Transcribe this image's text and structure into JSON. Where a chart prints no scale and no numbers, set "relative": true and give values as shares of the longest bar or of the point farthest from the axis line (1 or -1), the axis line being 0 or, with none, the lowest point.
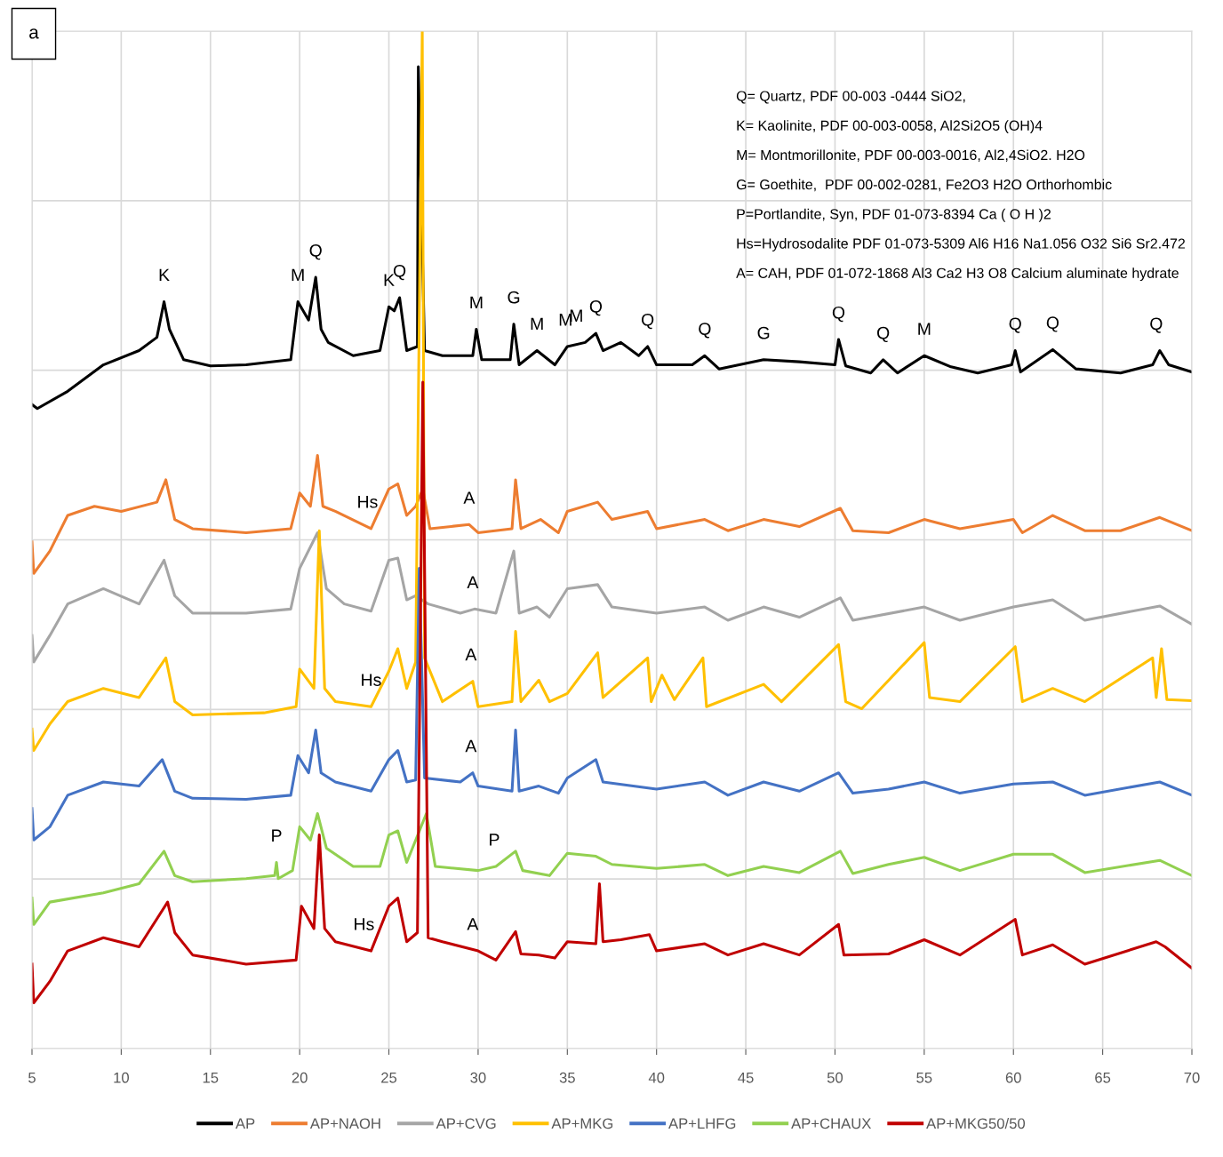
{
  "chart_data": {
    "type": "line",
    "title": "a",
    "relative": true,
    "xlim": [
      5,
      70
    ],
    "xticks": [
      5,
      10,
      15,
      20,
      25,
      30,
      35,
      40,
      45,
      50,
      55,
      60,
      65,
      70
    ],
    "grid": true,
    "legend": "bottom",
    "series": [
      {
        "name": "AP",
        "color": "#000000",
        "x": [
          5,
          5.3,
          7,
          9,
          11,
          12,
          12.4,
          12.7,
          13.5,
          15,
          17,
          19.5,
          19.9,
          20.5,
          20.9,
          21.2,
          21.6,
          23,
          24.5,
          25,
          25.3,
          25.6,
          26,
          26.6,
          26.65,
          27,
          28,
          29.7,
          29.9,
          30.2,
          31.8,
          32,
          32.3,
          33.3,
          34.3,
          35,
          36,
          36.6,
          37,
          38,
          39,
          39.5,
          40,
          42,
          42.7,
          43.5,
          46,
          48,
          50,
          50.2,
          50.6,
          52,
          52.7,
          53.5,
          55,
          56.5,
          58,
          59.9,
          60.1,
          60.4,
          62.2,
          63.5,
          66,
          67.8,
          68.2,
          68.7,
          70
        ],
        "values": [
          0.633,
          0.629,
          0.646,
          0.672,
          0.686,
          0.699,
          0.734,
          0.707,
          0.677,
          0.671,
          0.672,
          0.677,
          0.734,
          0.716,
          0.758,
          0.707,
          0.694,
          0.681,
          0.686,
          0.729,
          0.725,
          0.738,
          0.686,
          0.69,
          0.965,
          0.686,
          0.681,
          0.681,
          0.707,
          0.677,
          0.677,
          0.712,
          0.672,
          0.686,
          0.672,
          0.69,
          0.694,
          0.703,
          0.686,
          0.694,
          0.681,
          0.69,
          0.672,
          0.672,
          0.681,
          0.668,
          0.677,
          0.675,
          0.672,
          0.697,
          0.671,
          0.664,
          0.677,
          0.664,
          0.681,
          0.67,
          0.664,
          0.672,
          0.686,
          0.665,
          0.687,
          0.668,
          0.664,
          0.672,
          0.686,
          0.672,
          0.665
        ]
      },
      {
        "name": "AP+NAOH",
        "color": "#ed7d31",
        "x": [
          5,
          5.1,
          6,
          7,
          8.5,
          10,
          12,
          12.5,
          13,
          14,
          17,
          19.5,
          20,
          20.6,
          21,
          21.3,
          22,
          24,
          25,
          25.5,
          26,
          26.5,
          26.9,
          27.3,
          29.5,
          30,
          31.9,
          32.1,
          32.4,
          33.5,
          34.5,
          35,
          36.7,
          37.5,
          39.5,
          40,
          42.7,
          44,
          46,
          48,
          50.3,
          51,
          53,
          55,
          57,
          60,
          60.5,
          62.2,
          64,
          66,
          68.2,
          70
        ],
        "values": [
          0.498,
          0.467,
          0.489,
          0.524,
          0.533,
          0.528,
          0.537,
          0.559,
          0.52,
          0.511,
          0.507,
          0.511,
          0.546,
          0.533,
          0.583,
          0.533,
          0.528,
          0.511,
          0.55,
          0.555,
          0.524,
          0.533,
          0.55,
          0.511,
          0.515,
          0.507,
          0.511,
          0.559,
          0.511,
          0.52,
          0.507,
          0.528,
          0.537,
          0.52,
          0.528,
          0.511,
          0.52,
          0.509,
          0.52,
          0.513,
          0.531,
          0.509,
          0.507,
          0.52,
          0.511,
          0.52,
          0.507,
          0.524,
          0.509,
          0.509,
          0.522,
          0.509
        ]
      },
      {
        "name": "AP+CVG",
        "color": "#a5a5a5",
        "x": [
          5,
          5.1,
          6,
          7,
          9,
          11,
          12.4,
          13,
          14,
          17,
          19.5,
          20,
          21,
          21.5,
          22.5,
          24,
          25,
          25.5,
          26,
          26.5,
          27.2,
          29,
          29.8,
          31,
          32,
          32.3,
          33.3,
          34,
          35,
          36.7,
          37.5,
          40,
          42.7,
          44,
          46,
          48,
          50.3,
          51,
          55,
          57,
          60,
          62.2,
          64,
          68.2,
          70
        ],
        "values": [
          0.406,
          0.38,
          0.406,
          0.437,
          0.452,
          0.437,
          0.48,
          0.445,
          0.428,
          0.428,
          0.432,
          0.472,
          0.507,
          0.452,
          0.437,
          0.43,
          0.48,
          0.482,
          0.441,
          0.445,
          0.437,
          0.428,
          0.432,
          0.428,
          0.489,
          0.428,
          0.434,
          0.424,
          0.452,
          0.456,
          0.434,
          0.428,
          0.434,
          0.421,
          0.434,
          0.424,
          0.443,
          0.421,
          0.434,
          0.421,
          0.434,
          0.441,
          0.421,
          0.435,
          0.417
        ]
      },
      {
        "name": "AP+MKG",
        "color": "#ffc000",
        "x": [
          5,
          5.1,
          6,
          7,
          9,
          11,
          12.5,
          13,
          14,
          18,
          19.8,
          20,
          20.8,
          21.1,
          21.4,
          22,
          24,
          25,
          25.5,
          26,
          26.5,
          26.87,
          27,
          28,
          29.7,
          30,
          31.9,
          32.1,
          32.4,
          33.4,
          34,
          35,
          36.7,
          37,
          39.5,
          39.7,
          40.3,
          41,
          42.6,
          42.8,
          46,
          47,
          50.2,
          50.6,
          51.5,
          55,
          55.3,
          57,
          60.1,
          60.5,
          62.2,
          64,
          67.8,
          68,
          68.3,
          68.6,
          70
        ],
        "values": [
          0.314,
          0.293,
          0.319,
          0.341,
          0.354,
          0.345,
          0.384,
          0.341,
          0.328,
          0.33,
          0.336,
          0.373,
          0.354,
          0.509,
          0.354,
          0.341,
          0.336,
          0.371,
          0.393,
          0.354,
          0.38,
          1.0,
          0.384,
          0.341,
          0.361,
          0.336,
          0.341,
          0.41,
          0.341,
          0.362,
          0.341,
          0.349,
          0.389,
          0.345,
          0.384,
          0.341,
          0.367,
          0.343,
          0.384,
          0.336,
          0.358,
          0.341,
          0.397,
          0.341,
          0.334,
          0.399,
          0.345,
          0.341,
          0.395,
          0.341,
          0.354,
          0.341,
          0.384,
          0.345,
          0.393,
          0.343,
          0.342
        ]
      },
      {
        "name": "AP+LHFG",
        "color": "#4472c4",
        "x": [
          5,
          5.1,
          6,
          7,
          9,
          11,
          12.3,
          13,
          14,
          17,
          19.5,
          19.9,
          20.5,
          20.9,
          21.2,
          22,
          24,
          25,
          25.5,
          26,
          26.5,
          26.7,
          27,
          29,
          29.7,
          30,
          31.9,
          32.1,
          32.3,
          33.4,
          34.5,
          35,
          36.6,
          37,
          40,
          42.7,
          44,
          46,
          48,
          50.2,
          51,
          53,
          55,
          57,
          60,
          62.2,
          64,
          68.2,
          70
        ],
        "values": [
          0.236,
          0.205,
          0.218,
          0.249,
          0.262,
          0.258,
          0.284,
          0.253,
          0.246,
          0.245,
          0.249,
          0.288,
          0.271,
          0.313,
          0.271,
          0.262,
          0.253,
          0.284,
          0.293,
          0.262,
          0.264,
          0.472,
          0.266,
          0.262,
          0.271,
          0.258,
          0.253,
          0.313,
          0.253,
          0.258,
          0.251,
          0.266,
          0.284,
          0.262,
          0.255,
          0.262,
          0.249,
          0.262,
          0.253,
          0.271,
          0.251,
          0.255,
          0.262,
          0.251,
          0.26,
          0.262,
          0.249,
          0.262,
          0.249
        ]
      },
      {
        "name": "AP+CHAUX",
        "color": "#92d050",
        "x": [
          5,
          5.1,
          6,
          9,
          11,
          12.4,
          13,
          14,
          17,
          18.6,
          18.7,
          18.8,
          19.6,
          20,
          20.6,
          21,
          21.5,
          23,
          24.5,
          25,
          25.5,
          26,
          27.1,
          27.6,
          30,
          31,
          32.1,
          32.5,
          34,
          35,
          36.6,
          37.5,
          40,
          42.7,
          44,
          46,
          48,
          50.3,
          51,
          53,
          55,
          57,
          60,
          62.2,
          64,
          68.2,
          70
        ],
        "values": [
          0.148,
          0.122,
          0.144,
          0.153,
          0.162,
          0.194,
          0.17,
          0.164,
          0.167,
          0.17,
          0.183,
          0.167,
          0.175,
          0.218,
          0.205,
          0.231,
          0.197,
          0.179,
          0.179,
          0.21,
          0.214,
          0.183,
          0.231,
          0.179,
          0.175,
          0.179,
          0.194,
          0.175,
          0.17,
          0.192,
          0.189,
          0.181,
          0.177,
          0.181,
          0.17,
          0.179,
          0.173,
          0.194,
          0.172,
          0.181,
          0.188,
          0.175,
          0.191,
          0.191,
          0.173,
          0.185,
          0.17
        ]
      },
      {
        "name": "AP+MKG50/50",
        "color": "#c00000",
        "x": [
          5,
          5.1,
          6,
          7,
          9,
          11,
          12.6,
          13,
          14,
          17,
          19.8,
          20.1,
          20.8,
          21.1,
          21.4,
          22,
          24,
          25,
          25.5,
          26,
          26.6,
          26.9,
          27.2,
          28,
          30,
          31,
          32.1,
          32.4,
          33.4,
          34.3,
          35,
          36.6,
          36.8,
          37,
          38,
          39.6,
          40,
          42.7,
          44,
          46,
          48,
          50.2,
          50.5,
          53,
          55,
          57,
          60.1,
          60.5,
          62.2,
          64,
          68,
          68.5,
          70
        ],
        "values": [
          0.083,
          0.045,
          0.066,
          0.096,
          0.109,
          0.1,
          0.144,
          0.114,
          0.092,
          0.083,
          0.087,
          0.14,
          0.118,
          0.21,
          0.118,
          0.105,
          0.096,
          0.14,
          0.148,
          0.105,
          0.114,
          0.655,
          0.109,
          0.105,
          0.096,
          0.087,
          0.115,
          0.093,
          0.092,
          0.089,
          0.105,
          0.103,
          0.162,
          0.105,
          0.107,
          0.112,
          0.096,
          0.103,
          0.092,
          0.103,
          0.092,
          0.122,
          0.092,
          0.093,
          0.107,
          0.092,
          0.127,
          0.092,
          0.102,
          0.083,
          0.105,
          0.1,
          0.079
        ]
      }
    ],
    "annotations": [
      "Q= Quartz, PDF 00-003 -0444 SiO2,",
      "K= Kaolinite, PDF 00-003-0058, Al2Si2O5 (OH)4",
      "M= Montmorillonite, PDF 00-003-0016, Al2,4SiO2. H2O",
      "G= Goethite,  PDF 00-002-0281, Fe2O3 H2O Orthorhombic",
      "P=Portlandite, Syn, PDF 01-073-8394 Ca ( O H )2",
      "Hs=Hydrosodalite PDF 01-073-5309 Al6 H16 Na1.056 O32 Si6 Sr2.472",
      "A= CAH, PDF 01-072-1868 Al3 Ca2 H3 O8 Calcium aluminate hydrate",
      {
        "text": "K",
        "x": 12.4,
        "y": 0.734
      },
      {
        "text": "M",
        "x": 19.9,
        "y": 0.734
      },
      {
        "text": "Q",
        "x": 20.9,
        "y": 0.758
      },
      {
        "text": "K",
        "x": 25,
        "y": 0.729
      },
      {
        "text": "Q",
        "x": 25.6,
        "y": 0.738
      },
      {
        "text": "M",
        "x": 29.9,
        "y": 0.707
      },
      {
        "text": "G",
        "x": 32,
        "y": 0.712
      },
      {
        "text": "M",
        "x": 33.3,
        "y": 0.686
      },
      {
        "text": "M",
        "x": 34.9,
        "y": 0.69
      },
      {
        "text": "M",
        "x": 35.5,
        "y": 0.694
      },
      {
        "text": "Q",
        "x": 36.6,
        "y": 0.703
      },
      {
        "text": "Q",
        "x": 39.5,
        "y": 0.69
      },
      {
        "text": "Q",
        "x": 42.7,
        "y": 0.681
      },
      {
        "text": "G",
        "x": 46,
        "y": 0.677
      },
      {
        "text": "Q",
        "x": 50.2,
        "y": 0.697
      },
      {
        "text": "Q",
        "x": 52.7,
        "y": 0.677
      },
      {
        "text": "M",
        "x": 55,
        "y": 0.681
      },
      {
        "text": "Q",
        "x": 60.1,
        "y": 0.686
      },
      {
        "text": "Q",
        "x": 62.2,
        "y": 0.687
      },
      {
        "text": "Q",
        "x": 68,
        "y": 0.686
      },
      {
        "text": "Hs",
        "x": 23.8,
        "y": 0.511
      },
      {
        "text": "A",
        "x": 29.5,
        "y": 0.515
      },
      {
        "text": "A",
        "x": 29.7,
        "y": 0.432
      },
      {
        "text": "Hs",
        "x": 24,
        "y": 0.336
      },
      {
        "text": "A",
        "x": 29.6,
        "y": 0.361
      },
      {
        "text": "A",
        "x": 29.6,
        "y": 0.271
      },
      {
        "text": "P",
        "x": 18.7,
        "y": 0.183
      },
      {
        "text": "P",
        "x": 30.9,
        "y": 0.179
      },
      {
        "text": "Hs",
        "x": 23.6,
        "y": 0.096
      },
      {
        "text": "A",
        "x": 29.7,
        "y": 0.096
      }
    ]
  }
}
